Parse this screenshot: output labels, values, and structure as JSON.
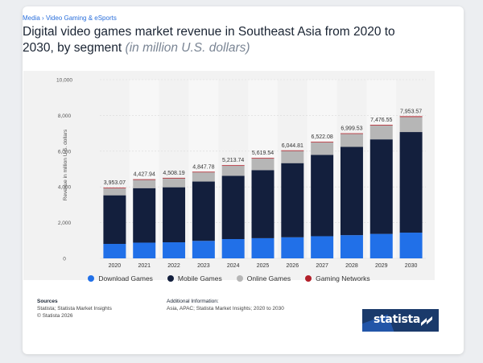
{
  "breadcrumb": {
    "parent": "Media",
    "sep": "›",
    "child": "Video Gaming & eSports"
  },
  "title": {
    "main": "Digital video games market revenue in Southeast Asia from 2020 to 2030, by segment",
    "unit": "(in million U.S. dollars)"
  },
  "chart_data": {
    "type": "bar",
    "stacked": true,
    "categories": [
      "2020",
      "2021",
      "2022",
      "2023",
      "2024",
      "2025",
      "2026",
      "2027",
      "2028",
      "2029",
      "2030"
    ],
    "series": [
      {
        "name": "Download Games",
        "color": "#2170e8",
        "values": [
          810,
          880,
          900,
          980,
          1080,
          1130,
          1180,
          1240,
          1300,
          1370,
          1440
        ]
      },
      {
        "name": "Mobile Games",
        "color": "#131f3d",
        "values": [
          2720,
          3050,
          3080,
          3320,
          3540,
          3810,
          4150,
          4550,
          4940,
          5290,
          5630
        ]
      },
      {
        "name": "Online Games",
        "color": "#b6b6b6",
        "values": [
          393,
          468,
          498,
          518,
          564,
          649,
          684,
          700,
          727,
          783,
          840
        ]
      },
      {
        "name": "Gaming Networks",
        "color": "#b3202a",
        "values": [
          30,
          30,
          30,
          30,
          30,
          31,
          31,
          32,
          33,
          34,
          44
        ]
      }
    ],
    "totals": [
      "3,953.07",
      "4,427.94",
      "4,508.19",
      "4,847.78",
      "5,213.74",
      "5,619.54",
      "6,044.81",
      "6,522.08",
      "6,999.53",
      "7,476.55",
      "7,953.57"
    ],
    "ylabel": "Revenue in million U.S. dollars",
    "ylim": [
      0,
      10000
    ],
    "yticks": [
      0,
      2000,
      4000,
      6000,
      8000,
      10000
    ],
    "ytick_labels": [
      "0",
      "2,000",
      "4,000",
      "6,000",
      "8,000",
      "10,000"
    ],
    "grid": true,
    "legend_position": "bottom"
  },
  "sources": {
    "heading": "Sources",
    "line1": "Statista; Statista Market Insights",
    "line2": "© Statista 2026"
  },
  "additional": {
    "heading": "Additional Information:",
    "line1": "Asia, APAC; Statista Market Insights; 2020 to 2030"
  },
  "logo": {
    "text": "statista"
  }
}
